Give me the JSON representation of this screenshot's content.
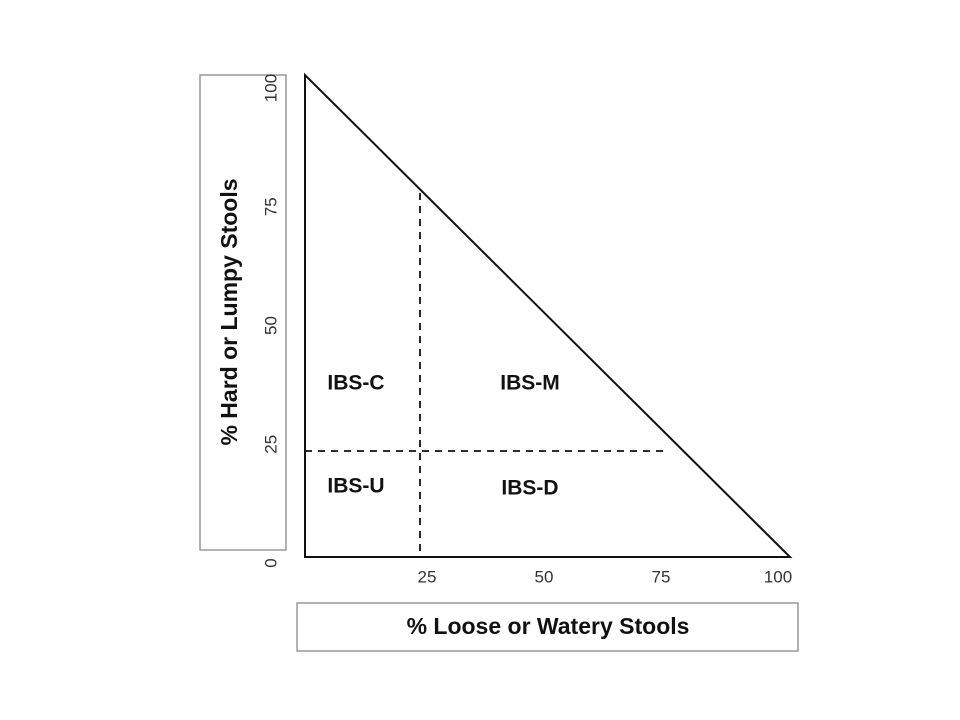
{
  "y_axis": {
    "label": "% Hard or Lumpy Stools",
    "ticks": [
      0,
      25,
      50,
      75,
      100
    ]
  },
  "x_axis": {
    "label": "% Loose or Watery Stools",
    "ticks": [
      25,
      50,
      75,
      100
    ]
  },
  "regions": [
    "IBS-C",
    "IBS-M",
    "IBS-U",
    "IBS-D"
  ]
}
